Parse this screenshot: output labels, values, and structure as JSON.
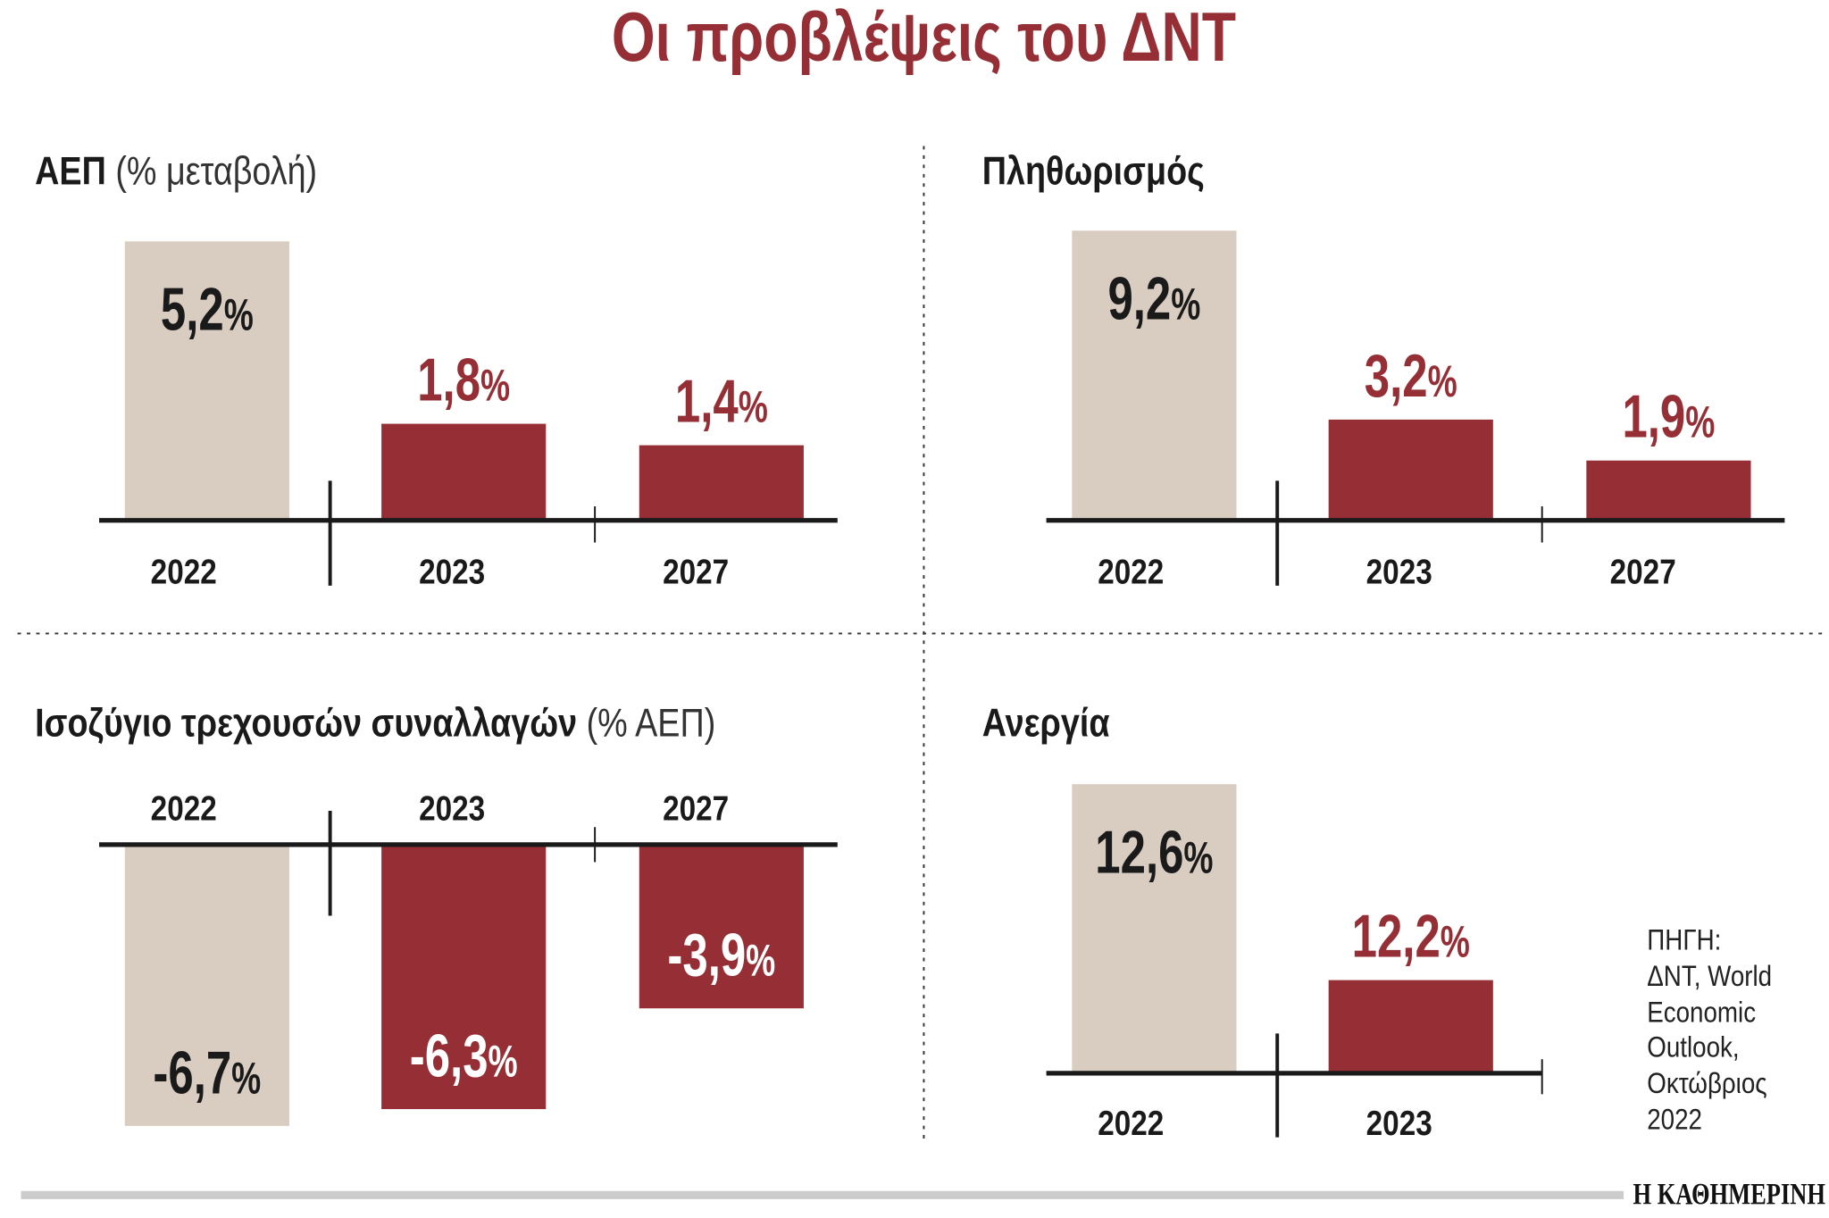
{
  "title": "Οι προβλέψεις του ΔΝΤ",
  "colors": {
    "accent": "#962f35",
    "past": "#d9cdc1",
    "axis": "#1a1a1a",
    "text": "#1a1a1a",
    "footer_bar": "#cccccc"
  },
  "chart_data": [
    {
      "type": "bar",
      "title": "ΑΕΠ",
      "subtitle": "(% μεταβολή)",
      "categories": [
        "2022",
        "2023",
        "2027"
      ],
      "values": [
        5.2,
        1.8,
        1.4
      ],
      "labels": [
        "5,2",
        "1,8",
        "1,4"
      ],
      "unit": "%"
    },
    {
      "type": "bar",
      "title": "Πληθωρισμός",
      "subtitle": "",
      "categories": [
        "2022",
        "2023",
        "2027"
      ],
      "values": [
        9.2,
        3.2,
        1.9
      ],
      "labels": [
        "9,2",
        "3,2",
        "1,9"
      ],
      "unit": "%"
    },
    {
      "type": "bar",
      "title": "Ισοζύγιο τρεχουσών συναλλαγών",
      "subtitle": "(% ΑΕΠ)",
      "categories": [
        "2022",
        "2023",
        "2027"
      ],
      "values": [
        -6.7,
        -6.3,
        -3.9
      ],
      "labels": [
        "-6,7",
        "-6,3",
        "-3,9"
      ],
      "unit": "%"
    },
    {
      "type": "bar",
      "title": "Ανεργία",
      "subtitle": "",
      "categories": [
        "2022",
        "2023"
      ],
      "values": [
        12.6,
        12.2
      ],
      "labels": [
        "12,6",
        "12,2"
      ],
      "unit": "%"
    }
  ],
  "source": [
    "ΠΗΓΗ:",
    "ΔΝΤ, World",
    "Economic",
    "Outlook,",
    "Οκτώβριος",
    "2022"
  ],
  "logo": "Η ΚΑΘΗΜΕΡΙΝΗ"
}
